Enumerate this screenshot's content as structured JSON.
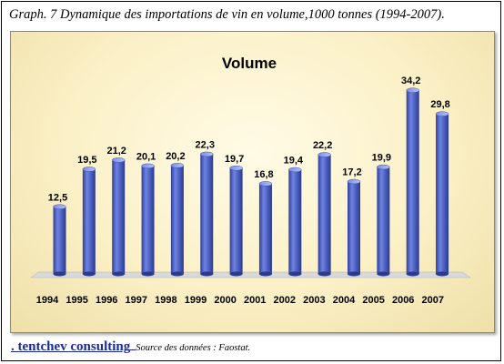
{
  "caption": "Graph. 7 Dynamique des importations de vin en volume,1000 tonnes (1994-2007).",
  "footer": {
    "brand": ". tentchev consulting",
    "source": "Source des données : Faostat."
  },
  "colors": {
    "bar": "#4a5fc4",
    "bar_highlight": "#9fb0f2",
    "bar_shadow": "#2b3a8a",
    "floor": "#d9d9d9"
  },
  "chart_data": {
    "type": "bar",
    "title": "Volume",
    "categories": [
      "1994",
      "1995",
      "1996",
      "1997",
      "1998",
      "1999",
      "2000",
      "2001",
      "2002",
      "2003",
      "2004",
      "2005",
      "2006",
      "2007"
    ],
    "values": [
      12.5,
      19.5,
      21.2,
      20.1,
      20.2,
      22.3,
      19.7,
      16.8,
      19.4,
      22.2,
      17.2,
      19.9,
      34.2,
      29.8
    ],
    "value_labels": [
      "12,5",
      "19,5",
      "21,2",
      "20,1",
      "20,2",
      "22,3",
      "19,7",
      "16,8",
      "19,4",
      "22,2",
      "17,2",
      "19,9",
      "34,2",
      "29,8"
    ],
    "ylim": [
      0,
      36
    ],
    "grid": false,
    "legend": "none"
  }
}
